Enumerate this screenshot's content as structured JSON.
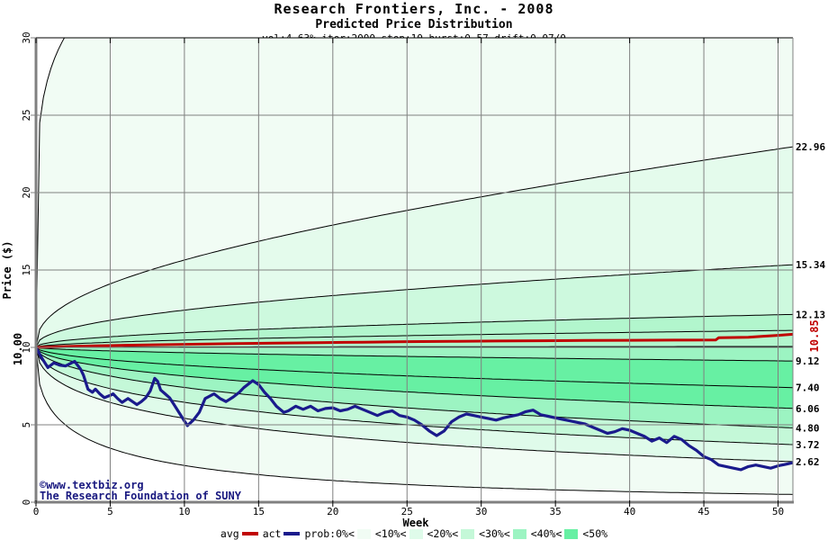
{
  "header": {
    "title": "Research Frontiers, Inc. - 2008",
    "subtitle": "Predicted Price Distribution",
    "params": "vol:4.63% iter:2000 step:10 hurst:0.57 drift:0.07/0"
  },
  "parameters": {
    "vol": "4.63%",
    "iter": "2000",
    "step": "10",
    "hurst": "0.57",
    "drift": "0.07/0"
  },
  "watermark": {
    "line1": "©www.textbiz.org",
    "line2": "The Research Foundation of SUNY",
    "color": "#191980"
  },
  "axes": {
    "x_label": "Week",
    "y_label": "Price ($)",
    "x_ticks": [
      0,
      5,
      10,
      15,
      20,
      25,
      30,
      35,
      40,
      45,
      50
    ],
    "y_ticks": [
      0,
      5,
      10,
      15,
      20,
      25,
      30
    ],
    "x_range": [
      0,
      51
    ],
    "y_range": [
      0,
      30
    ],
    "start_price_label": "10.00"
  },
  "right_labels": [
    {
      "text": "22.96",
      "value": 22.96
    },
    {
      "text": "15.34",
      "value": 15.34
    },
    {
      "text": "12.13",
      "value": 12.13
    },
    {
      "text": "9.12",
      "value": 9.12
    },
    {
      "text": "7.40",
      "value": 7.4
    },
    {
      "text": "6.06",
      "value": 6.06
    },
    {
      "text": "4.80",
      "value": 4.8
    },
    {
      "text": "3.72",
      "value": 3.72
    },
    {
      "text": "2.62",
      "value": 2.62
    }
  ],
  "avg_end_label": {
    "text": "10.85",
    "value": 10.85,
    "color": "#c00000"
  },
  "legend": {
    "items": [
      {
        "label": "avg",
        "swatch": "line",
        "color": "#c00000"
      },
      {
        "label": "act",
        "swatch": "line",
        "color": "#1a1a8c"
      },
      {
        "label": "prob:0%<",
        "swatch": "box",
        "color": "#f1fcf4"
      },
      {
        "label": "<10%<",
        "swatch": "box",
        "color": "#dffbea"
      },
      {
        "label": "<20%<",
        "swatch": "box",
        "color": "#c4f8d8"
      },
      {
        "label": "<30%<",
        "swatch": "box",
        "color": "#9cf4c2"
      },
      {
        "label": "<40%<",
        "swatch": "box",
        "color": "#67f0a3"
      },
      {
        "label": "<50%",
        "swatch": "none",
        "color": ""
      }
    ]
  },
  "colors": {
    "grid": "#808080",
    "frame_top": "#000000",
    "frame_right": "#808080",
    "axis": "#808080",
    "curve": "#000000",
    "avg": "#c00000",
    "act": "#1a1a8c",
    "band_fills": [
      "#f1fcf4",
      "#e4fbec",
      "#cdf9de",
      "#b2f6cd",
      "#b2f6cd",
      "#9cf4c2",
      "#67f0a3",
      "#67f0a3",
      "#9cf4c2",
      "#c4f8d8",
      "#dffbea",
      "#f1fcf4"
    ]
  },
  "chart_data": {
    "type": "area",
    "title": "Research Frontiers, Inc. - 2008 — Predicted Price Distribution",
    "xlabel": "Week",
    "ylabel": "Price ($)",
    "xlim": [
      0,
      51
    ],
    "ylim": [
      0,
      30
    ],
    "grid": true,
    "legend_position": "bottom",
    "start_price": 10.0,
    "fan_curves": [
      {
        "name": "max",
        "start": 10,
        "end": 46.0,
        "p": 0.1,
        "label": ""
      },
      {
        "name": "upper_10pct",
        "start": 10,
        "end": 22.96,
        "p": 0.38,
        "label": "22.96"
      },
      {
        "name": "upper_20pct",
        "start": 10,
        "end": 15.34,
        "p": 0.42,
        "label": "15.34"
      },
      {
        "name": "upper_30pct",
        "start": 10,
        "end": 12.13,
        "p": 0.46,
        "label": "12.13"
      },
      {
        "name": "upper_40pct",
        "start": 10,
        "end": 11.1,
        "p": 0.5,
        "label": ""
      },
      {
        "name": "upper_50pct",
        "start": 10,
        "end": 10.06,
        "p": 0.5,
        "label": ""
      },
      {
        "name": "median",
        "start": 10,
        "end": 9.12,
        "p": 0.6,
        "label": "9.12"
      },
      {
        "name": "lower_50pct",
        "start": 10,
        "end": 7.4,
        "p": 0.55,
        "label": "7.40"
      },
      {
        "name": "lower_40pct",
        "start": 10,
        "end": 6.06,
        "p": 0.55,
        "label": "6.06"
      },
      {
        "name": "lower_30pct",
        "start": 10,
        "end": 4.8,
        "p": 0.55,
        "label": "4.80"
      },
      {
        "name": "lower_20pct",
        "start": 10,
        "end": 3.72,
        "p": 0.5,
        "label": "3.72"
      },
      {
        "name": "lower_10pct",
        "start": 10,
        "end": 2.62,
        "p": 0.48,
        "label": "2.62"
      },
      {
        "name": "min",
        "start": 10,
        "end": 0.5,
        "p": 0.45,
        "label": ""
      }
    ],
    "series": [
      {
        "name": "avg",
        "color": "#c00000",
        "final_value": 10.85,
        "points": [
          [
            0,
            10.0
          ],
          [
            2,
            10.06
          ],
          [
            4,
            10.1
          ],
          [
            6,
            10.14
          ],
          [
            8,
            10.17
          ],
          [
            10,
            10.2
          ],
          [
            13,
            10.24
          ],
          [
            16,
            10.28
          ],
          [
            19,
            10.31
          ],
          [
            22,
            10.34
          ],
          [
            25,
            10.37
          ],
          [
            28,
            10.39
          ],
          [
            31,
            10.41
          ],
          [
            34,
            10.43
          ],
          [
            37,
            10.45
          ],
          [
            40,
            10.46
          ],
          [
            43,
            10.47
          ],
          [
            45.8,
            10.48
          ],
          [
            46,
            10.62
          ],
          [
            48,
            10.65
          ],
          [
            49,
            10.72
          ],
          [
            50,
            10.78
          ],
          [
            51,
            10.85
          ]
        ]
      },
      {
        "name": "act",
        "color": "#1a1a8c",
        "final_value": 2.55,
        "points": [
          [
            0,
            10.0
          ],
          [
            0.4,
            9.3
          ],
          [
            0.8,
            8.7
          ],
          [
            1.2,
            9.0
          ],
          [
            1.6,
            8.85
          ],
          [
            2,
            8.8
          ],
          [
            2.6,
            9.1
          ],
          [
            3,
            8.6
          ],
          [
            3.2,
            8.2
          ],
          [
            3.5,
            7.3
          ],
          [
            3.8,
            7.1
          ],
          [
            4,
            7.3
          ],
          [
            4.3,
            7.0
          ],
          [
            4.6,
            6.75
          ],
          [
            5,
            6.9
          ],
          [
            5.2,
            7.0
          ],
          [
            5.5,
            6.7
          ],
          [
            5.8,
            6.45
          ],
          [
            6.2,
            6.7
          ],
          [
            6.5,
            6.5
          ],
          [
            6.8,
            6.3
          ],
          [
            7.1,
            6.5
          ],
          [
            7.4,
            6.75
          ],
          [
            7.7,
            7.2
          ],
          [
            8,
            8.0
          ],
          [
            8.2,
            7.8
          ],
          [
            8.4,
            7.25
          ],
          [
            8.7,
            7.0
          ],
          [
            9,
            6.75
          ],
          [
            9.3,
            6.3
          ],
          [
            9.6,
            5.85
          ],
          [
            10,
            5.25
          ],
          [
            10.2,
            4.95
          ],
          [
            10.6,
            5.3
          ],
          [
            11,
            5.8
          ],
          [
            11.4,
            6.7
          ],
          [
            12,
            7.0
          ],
          [
            12.4,
            6.7
          ],
          [
            12.8,
            6.5
          ],
          [
            13.3,
            6.8
          ],
          [
            13.7,
            7.1
          ],
          [
            14,
            7.4
          ],
          [
            14.6,
            7.85
          ],
          [
            15,
            7.6
          ],
          [
            15.4,
            7.1
          ],
          [
            15.8,
            6.7
          ],
          [
            16.2,
            6.2
          ],
          [
            16.7,
            5.8
          ],
          [
            17,
            5.9
          ],
          [
            17.5,
            6.2
          ],
          [
            18,
            6.0
          ],
          [
            18.5,
            6.2
          ],
          [
            19,
            5.9
          ],
          [
            19.5,
            6.05
          ],
          [
            20,
            6.1
          ],
          [
            20.5,
            5.9
          ],
          [
            21,
            6.0
          ],
          [
            21.5,
            6.2
          ],
          [
            22,
            6.0
          ],
          [
            22.5,
            5.8
          ],
          [
            23,
            5.6
          ],
          [
            23.5,
            5.8
          ],
          [
            24,
            5.9
          ],
          [
            24.5,
            5.6
          ],
          [
            25,
            5.5
          ],
          [
            25.5,
            5.3
          ],
          [
            26,
            5.0
          ],
          [
            26.5,
            4.6
          ],
          [
            27,
            4.3
          ],
          [
            27.5,
            4.6
          ],
          [
            28,
            5.2
          ],
          [
            28.5,
            5.5
          ],
          [
            29,
            5.7
          ],
          [
            29.5,
            5.6
          ],
          [
            30,
            5.5
          ],
          [
            30.5,
            5.4
          ],
          [
            31,
            5.3
          ],
          [
            31.5,
            5.45
          ],
          [
            32,
            5.55
          ],
          [
            32.5,
            5.65
          ],
          [
            33,
            5.85
          ],
          [
            33.5,
            5.95
          ],
          [
            34,
            5.65
          ],
          [
            34.5,
            5.55
          ],
          [
            35,
            5.45
          ],
          [
            35.5,
            5.35
          ],
          [
            36,
            5.25
          ],
          [
            36.5,
            5.15
          ],
          [
            37,
            5.05
          ],
          [
            37.5,
            4.85
          ],
          [
            38,
            4.65
          ],
          [
            38.5,
            4.45
          ],
          [
            39,
            4.55
          ],
          [
            39.5,
            4.75
          ],
          [
            40,
            4.65
          ],
          [
            40.5,
            4.45
          ],
          [
            41,
            4.25
          ],
          [
            41.5,
            3.95
          ],
          [
            42,
            4.15
          ],
          [
            42.5,
            3.85
          ],
          [
            43,
            4.25
          ],
          [
            43.5,
            4.05
          ],
          [
            44,
            3.65
          ],
          [
            44.5,
            3.35
          ],
          [
            45,
            2.95
          ],
          [
            45.5,
            2.75
          ],
          [
            46,
            2.4
          ],
          [
            46.5,
            2.3
          ],
          [
            47,
            2.2
          ],
          [
            47.5,
            2.1
          ],
          [
            48,
            2.3
          ],
          [
            48.5,
            2.4
          ],
          [
            49,
            2.3
          ],
          [
            49.5,
            2.2
          ],
          [
            50,
            2.35
          ],
          [
            50.5,
            2.45
          ],
          [
            51,
            2.55
          ]
        ]
      }
    ]
  }
}
